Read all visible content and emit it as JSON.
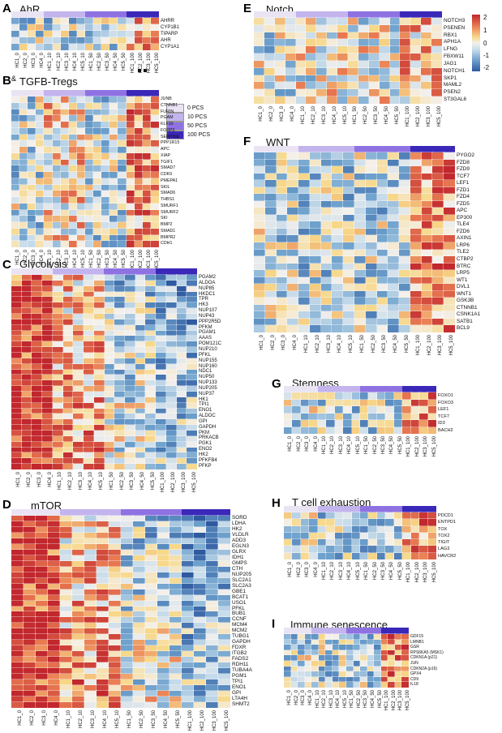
{
  "pcs_legend": [
    {
      "label": "0 PCS",
      "color": "#e9e3f4"
    },
    {
      "label": "10 PCS",
      "color": "#c3b4ee"
    },
    {
      "label": "50 PCS",
      "color": "#8f72e2"
    },
    {
      "label": "100 PCS",
      "color": "#3a28b8"
    }
  ],
  "colorbar": {
    "ticks": [
      "2",
      "1",
      "0",
      "-1",
      "-2"
    ]
  },
  "panels": {
    "A": {
      "letter": "A",
      "title": "AhR",
      "genes": [
        "AHRR",
        "CYP1B1",
        "TIPARP",
        "AHR",
        "CYP1A1"
      ],
      "samples": [
        "HC1_0",
        "HC2_0",
        "HC3_0",
        "HC4_0",
        "HC1_10",
        "HC2_10",
        "HC3_10",
        "HC4_10",
        "HC5_10",
        "HC1_50",
        "HC2_50",
        "HC3_50",
        "HC4_50",
        "HC5_50",
        "HC1_100",
        "HC2_100",
        "HC3_100",
        "HC5_100"
      ],
      "bar": [
        0,
        0,
        0,
        0,
        1,
        1,
        1,
        1,
        1,
        2,
        2,
        2,
        2,
        2,
        3,
        3,
        3,
        3
      ]
    },
    "B": {
      "letter": "B",
      "title": "TGFB-Tregs",
      "genes": [
        "JUNB",
        "CTNNB1",
        "FURIN",
        "PGAM",
        "KLF10",
        "FOXP3",
        "SERPINE",
        "PPP1R15",
        "APC",
        "XIAP",
        "TGIF1",
        "SMAD7",
        "CDK9",
        "PMEPA1",
        "SKIL",
        "SMAD6",
        "THBS1",
        "SMURF1",
        "SMURF2",
        "SKI",
        "BMP2",
        "SMAD1",
        "BMPR2",
        "CDH1"
      ],
      "samples": [
        "HC1_0",
        "HC2_0",
        "HC3_0",
        "HC4_0",
        "HC1_10",
        "HC2_10",
        "HC3_10",
        "HC4_10",
        "HC5_10",
        "HC1_50",
        "HC2_50",
        "HC3_50",
        "HC4_50",
        "HC5_50",
        "HC1_100",
        "HC2_100",
        "HC3_100",
        "HC5_100"
      ],
      "bar": [
        0,
        0,
        0,
        0,
        1,
        1,
        1,
        1,
        1,
        2,
        2,
        2,
        2,
        2,
        3,
        3,
        3,
        3
      ]
    },
    "C": {
      "letter": "C",
      "title": "Glycolysis",
      "genes": [
        "PGAM2",
        "ALDOA",
        "NUP85",
        "HKDC1",
        "TPR",
        "HK3",
        "NUP107",
        "NUP43",
        "PPP2R5D",
        "PFKM",
        "PGAM1",
        "AAAS",
        "POM121C",
        "NUP210",
        "PFKL",
        "NUP155",
        "NUP160",
        "NDC1",
        "NUP50",
        "NUP133",
        "NUP205",
        "NUP37",
        "HK1",
        "TPI1",
        "ENO1",
        "ALDOC",
        "GPI",
        "GAPDH",
        "PKM",
        "PRKACB",
        "PGK1",
        "ENO2",
        "HK2",
        "PFKFB4",
        "PFKP"
      ],
      "samples": [
        "HC1_0",
        "HC2_0",
        "HC3_0",
        "HC4_0",
        "HC1_10",
        "HC2_10",
        "HC3_10",
        "HC4_10",
        "HC5_10",
        "HC1_50",
        "HC2_50",
        "HC3_50",
        "HC4_50",
        "HC5_50",
        "HC1_100",
        "HC2_100",
        "HC3_100",
        "HC5_100"
      ],
      "bar": [
        0,
        0,
        0,
        0,
        1,
        1,
        1,
        1,
        1,
        2,
        2,
        2,
        2,
        2,
        3,
        3,
        3,
        3
      ]
    },
    "D": {
      "letter": "D",
      "title": "mTOR",
      "genes": [
        "SORD",
        "LDHA",
        "HK2",
        "VLDLR",
        "ADD3",
        "EGLN3",
        "GLRX",
        "IDH1",
        "GMPS",
        "CTH",
        "NUP205",
        "SLC2A1",
        "SLC2A3",
        "GBE1",
        "BCAT1",
        "USO1",
        "PFKL",
        "BUB1",
        "CCNF",
        "MCM4",
        "MCM2",
        "TUBG1",
        "GAPDH",
        "FDXR",
        "ITGB2",
        "FADS2",
        "RDH11",
        "TUBA4A",
        "PGM1",
        "TPI1",
        "ENO1",
        "GPI",
        "LTA4H",
        "SHMT2"
      ],
      "samples": [
        "HC1_0",
        "HC2_0",
        "HC3_0",
        "HC4_0",
        "HC1_10",
        "HC2_10",
        "HC3_10",
        "HC4_10",
        "HC5_10",
        "HC1_50",
        "HC2_50",
        "HC3_50",
        "HC4_50",
        "HC5_50",
        "HC1_100",
        "HC2_100",
        "HC3_100",
        "HC5_100"
      ],
      "bar": [
        0,
        0,
        0,
        0,
        1,
        1,
        1,
        1,
        1,
        2,
        2,
        2,
        2,
        2,
        3,
        3,
        3,
        3
      ]
    },
    "E": {
      "letter": "E",
      "title": "Notch",
      "genes": [
        "NOTCH3",
        "PSENEN",
        "RBX1",
        "APH1A",
        "LFNG",
        "FBXW11",
        "JAG1",
        "NOTCH1",
        "SKP1",
        "MAML2",
        "PSEN2",
        "ST3GAL6"
      ],
      "samples": [
        "HC1_0",
        "HC2_0",
        "HC3_0",
        "HC4_0",
        "HC1_10",
        "HC2_10",
        "HC3_10",
        "HC4_10",
        "HC5_10",
        "HC1_50",
        "HC2_50",
        "HC3_50",
        "HC4_50",
        "HC5_50",
        "HC1_100",
        "HC2_100",
        "HC3_100",
        "HC5_100"
      ],
      "bar": [
        0,
        0,
        0,
        0,
        1,
        1,
        1,
        1,
        1,
        2,
        2,
        2,
        2,
        2,
        3,
        3,
        3,
        3
      ]
    },
    "F": {
      "letter": "F",
      "title": "WNT",
      "genes": [
        "PYGO2",
        "FZD8",
        "FZD9",
        "TCF7",
        "LEF1",
        "FZD1",
        "FZD4",
        "FZD5",
        "APC",
        "EP300",
        "TLE4",
        "FZD6",
        "AXIN1",
        "LRP6",
        "TLE2",
        "CTBP2",
        "BTRC",
        "LRP5",
        "WT1",
        "DVL1",
        "WNT1",
        "GSK3B",
        "CTNNB1",
        "CSNK1A1",
        "SATB1",
        "BCL9"
      ],
      "samples": [
        "HC1_0",
        "HC2_0",
        "HC3_0",
        "HC4_0",
        "HC1_10",
        "HC2_10",
        "HC3_10",
        "HC4_10",
        "HC5_10",
        "HC1_50",
        "HC2_50",
        "HC3_50",
        "HC4_50",
        "HC5_50",
        "HC1_100",
        "HC2_100",
        "HC3_100",
        "HC5_100"
      ],
      "bar": [
        0,
        0,
        0,
        0,
        1,
        1,
        1,
        1,
        1,
        2,
        2,
        2,
        2,
        2,
        3,
        3,
        3,
        3
      ]
    },
    "G": {
      "letter": "G",
      "title": "Stemness",
      "genes": [
        "FOXO1",
        "FOXO3",
        "LEF1",
        "TCF7",
        "ID3",
        "BACH2"
      ],
      "samples": [
        "HC1_0",
        "HC2_0",
        "HC3_0",
        "HC4_0",
        "HC1_10",
        "HC2_10",
        "HC3_10",
        "HC4_10",
        "HC5_10",
        "HC1_50",
        "HC2_50",
        "HC3_50",
        "HC4_50",
        "HC5_50",
        "HC1_100",
        "HC2_100",
        "HC3_100",
        "HC5_100"
      ],
      "bar": [
        0,
        0,
        0,
        0,
        1,
        1,
        1,
        1,
        1,
        2,
        2,
        2,
        2,
        2,
        3,
        3,
        3,
        3
      ]
    },
    "H": {
      "letter": "H",
      "title": "T cell exhaustion",
      "genes": [
        "PDCD1",
        "ENTPD1",
        "TOX",
        "TOX2",
        "TIGIT",
        "LAG3",
        "HAVCR2"
      ],
      "samples": [
        "HC1_0",
        "HC2_0",
        "HC3_0",
        "HC4_0",
        "HC1_10",
        "HC2_10",
        "HC3_10",
        "HC4_10",
        "HC5_10",
        "HC1_50",
        "HC2_50",
        "HC3_50",
        "HC4_50",
        "HC5_50",
        "HC1_100",
        "HC2_100",
        "HC3_100",
        "HC5_100"
      ],
      "bar": [
        0,
        0,
        0,
        0,
        1,
        1,
        1,
        1,
        1,
        2,
        2,
        2,
        2,
        2,
        3,
        3,
        3,
        3
      ]
    },
    "I": {
      "letter": "I",
      "title": "Immune senescence",
      "genes": [
        "GDF15",
        "LMNB1",
        "GSR",
        "RPS6KA5 (MSK1)",
        "CDKN1A (p21)",
        "JUN",
        "CDKN2A (p16)",
        "GPX4",
        "CD9",
        "IL18"
      ],
      "samples": [
        "HC1_0",
        "HC2_0",
        "HC3_0",
        "HC4_0",
        "HC1_10",
        "HC2_10",
        "HC3_10",
        "HC4_10",
        "HC5_10",
        "HC1_50",
        "HC2_50",
        "HC3_50",
        "HC4_50",
        "HC5_50",
        "HC1_100",
        "HC2_100",
        "HC3_100",
        "HC5_100"
      ],
      "bar": [
        0,
        0,
        0,
        0,
        1,
        1,
        1,
        1,
        1,
        2,
        2,
        2,
        2,
        2,
        3,
        3,
        3,
        3
      ]
    }
  }
}
